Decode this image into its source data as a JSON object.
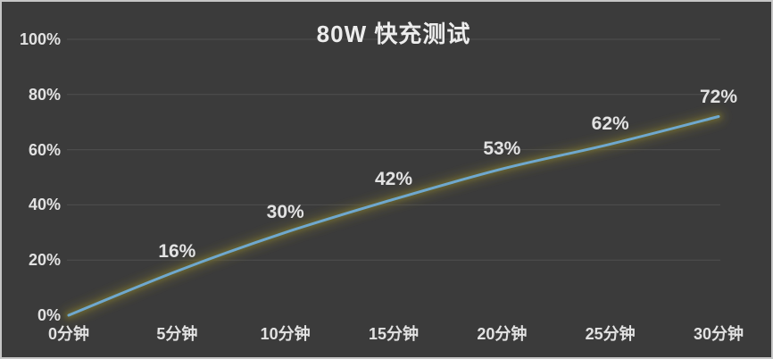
{
  "chart_data": {
    "type": "line",
    "title": "80W 快充测试",
    "categories": [
      "0分钟",
      "5分钟",
      "10分钟",
      "15分钟",
      "20分钟",
      "25分钟",
      "30分钟"
    ],
    "values": [
      0,
      16,
      30,
      42,
      53,
      62,
      72
    ],
    "point_labels": [
      "",
      "16%",
      "30%",
      "42%",
      "53%",
      "62%",
      "72%"
    ],
    "xlabel": "",
    "ylabel": "",
    "ylim": [
      0,
      100
    ],
    "y_ticks": [
      0,
      20,
      40,
      60,
      80,
      100
    ],
    "y_tick_labels": [
      "0%",
      "20%",
      "40%",
      "60%",
      "80%",
      "100%"
    ],
    "grid": "horizontal, no line at 0%",
    "legend": "none",
    "line_style": "smoothed, no markers, olive glow halo",
    "colors": {
      "background": "#3b3b3b",
      "frame_border": "#c6c6c6",
      "gridline": "#4f4f4f",
      "text": "#e2e2e2",
      "title_text": "#ededed",
      "line": "#6fa8ce",
      "glow": "#6f6a33"
    }
  }
}
